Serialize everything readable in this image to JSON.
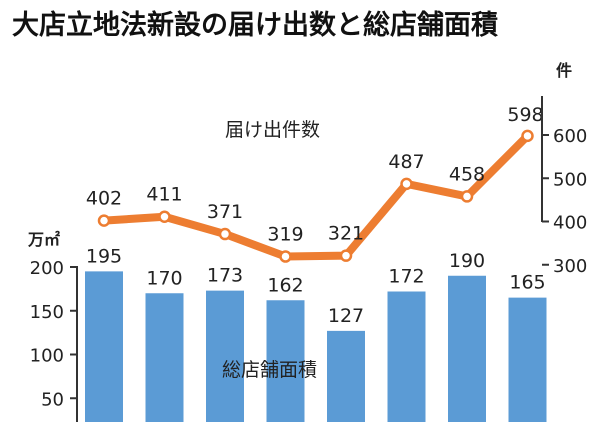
{
  "chart_data": {
    "type": "bar",
    "title": "大店立地法新設の届け出数と総店舗面積",
    "categories": [
      "",
      "",
      "",
      "",
      "",
      "",
      "",
      ""
    ],
    "series": [
      {
        "name": "総店舗面積",
        "type": "bar",
        "unit": "万㎡",
        "values": [
          195,
          170,
          173,
          162,
          127,
          172,
          190,
          165
        ],
        "yticks": [
          50,
          100,
          150,
          200
        ],
        "color": "#5b9bd5"
      },
      {
        "name": "届け出件数",
        "type": "line",
        "unit": "件",
        "values": [
          402,
          411,
          371,
          319,
          321,
          487,
          458,
          598
        ],
        "yticks": [
          300,
          400,
          500,
          600
        ],
        "color": "#ed7d31"
      }
    ]
  }
}
